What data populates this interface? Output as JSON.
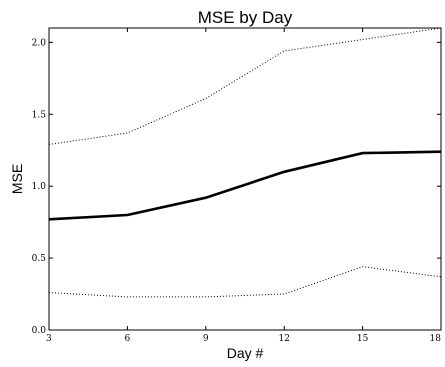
{
  "chart_data": {
    "type": "line",
    "title": "MSE by Day",
    "xlabel": "Day #",
    "ylabel": "MSE",
    "xlim": [
      3,
      18
    ],
    "ylim": [
      0.0,
      2.1
    ],
    "x_ticks": [
      3,
      6,
      9,
      12,
      15,
      18
    ],
    "x_tick_labels": [
      "3",
      "6",
      "9",
      "12",
      "15",
      "18"
    ],
    "y_ticks": [
      0.0,
      0.5,
      1.0,
      1.5,
      2.0
    ],
    "y_tick_labels": [
      "0.0",
      "0.5",
      "1.0",
      "1.5",
      "2.0"
    ],
    "grid": false,
    "legend": "none",
    "x": [
      3,
      6,
      9,
      12,
      15,
      18
    ],
    "series": [
      {
        "style": "solid",
        "values": [
          0.77,
          0.8,
          0.92,
          1.1,
          1.23,
          1.24
        ]
      },
      {
        "style": "dotted-upper",
        "values": [
          1.29,
          1.37,
          1.61,
          1.94,
          2.02,
          2.1
        ]
      },
      {
        "style": "dotted-lower",
        "values": [
          0.26,
          0.23,
          0.23,
          0.25,
          0.44,
          0.37
        ]
      }
    ],
    "colors": {
      "line": "#000000",
      "frame": "#000000"
    }
  }
}
